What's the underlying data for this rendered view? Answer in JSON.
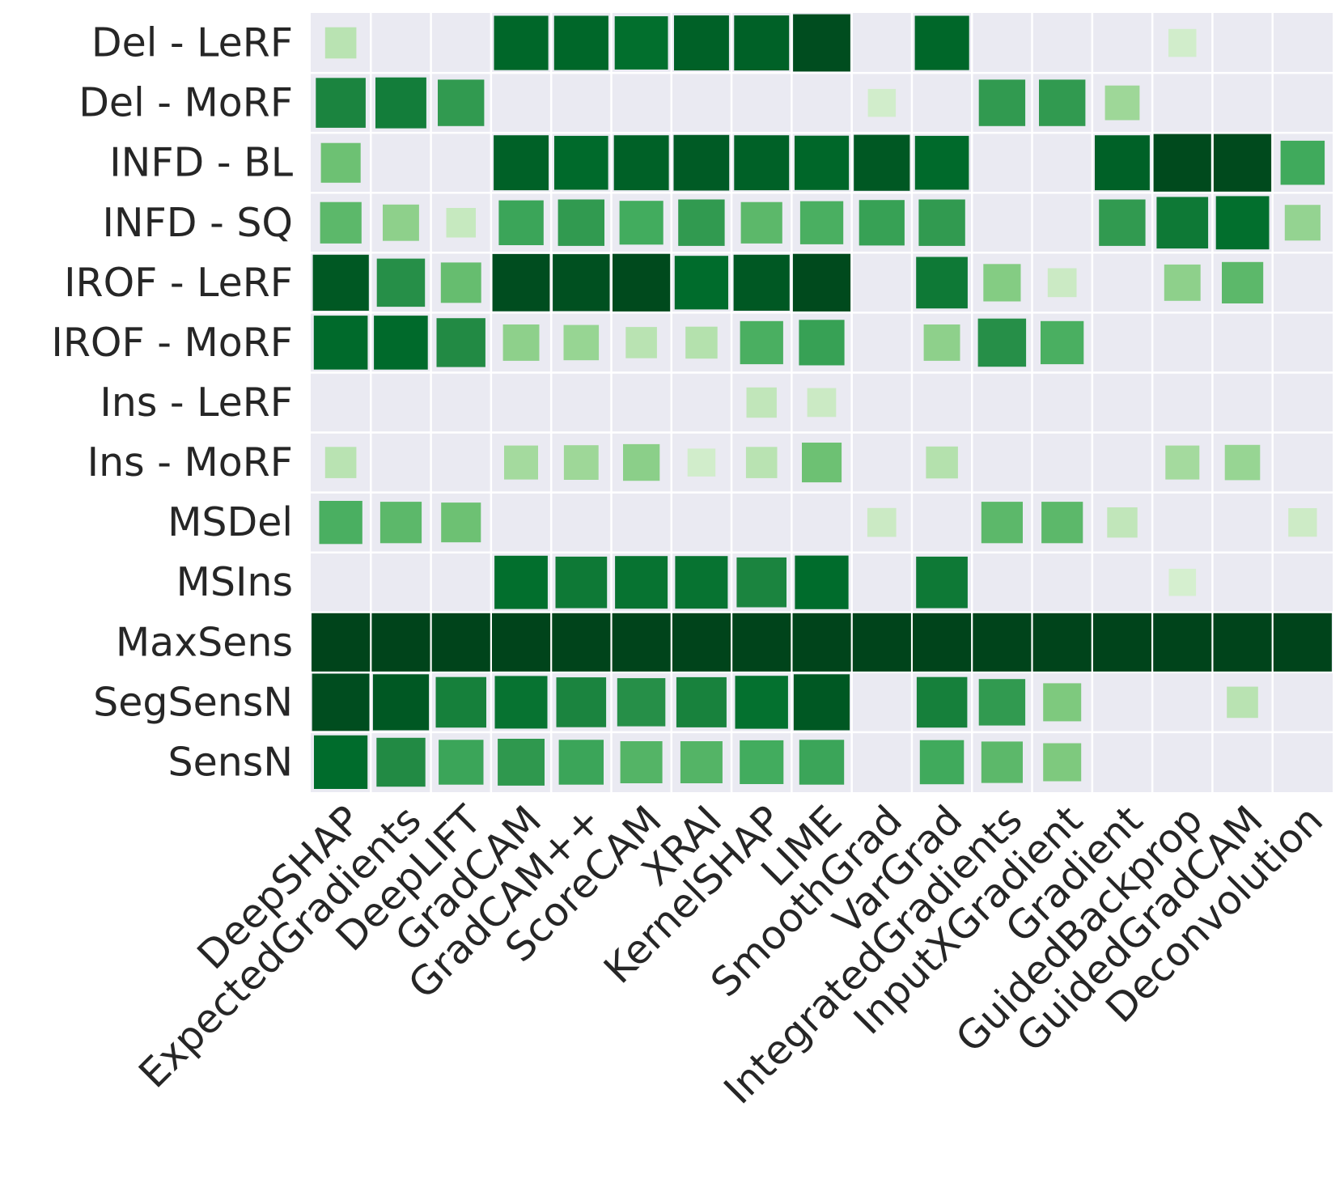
{
  "chart_data": {
    "type": "heatmap",
    "rows": [
      "Del - LeRF",
      "Del - MoRF",
      "INFD - BL",
      "INFD - SQ",
      "IROF - LeRF",
      "IROF - MoRF",
      "Ins - LeRF",
      "Ins - MoRF",
      "MSDel",
      "MSIns",
      "MaxSens",
      "SegSensN",
      "SensN"
    ],
    "columns": [
      "DeepSHAP",
      "ExpectedGradients",
      "DeepLIFT",
      "GradCAM",
      "GradCAM++",
      "ScoreCAM",
      "XRAI",
      "KernelSHAP",
      "LIME",
      "SmoothGrad",
      "VarGrad",
      "IntegratedGradients",
      "InputXGradient",
      "Gradient",
      "GuidedBackprop",
      "GuidedGradCAM",
      "Deconvolution"
    ],
    "values": [
      [
        0.2,
        0,
        0,
        0.88,
        0.88,
        0.85,
        0.9,
        0.9,
        0.97,
        0,
        0.88,
        0,
        0,
        0,
        0.1,
        0,
        0
      ],
      [
        0.75,
        0.78,
        0.65,
        0,
        0,
        0,
        0,
        0,
        0,
        0.1,
        0,
        0.65,
        0.65,
        0.3,
        0,
        0,
        0
      ],
      [
        0.45,
        0,
        0,
        0.9,
        0.87,
        0.9,
        0.92,
        0.9,
        0.88,
        0.93,
        0.87,
        0,
        0,
        0.9,
        0.98,
        0.98,
        0.58
      ],
      [
        0.5,
        0.35,
        0.15,
        0.6,
        0.65,
        0.57,
        0.65,
        0.5,
        0.55,
        0.62,
        0.65,
        0,
        0,
        0.65,
        0.8,
        0.85,
        0.33
      ],
      [
        0.93,
        0.7,
        0.47,
        0.97,
        0.96,
        0.98,
        0.86,
        0.93,
        0.98,
        0,
        0.8,
        0.38,
        0.13,
        0,
        0.35,
        0.5,
        0
      ],
      [
        0.87,
        0.87,
        0.72,
        0.35,
        0.32,
        0.2,
        0.22,
        0.55,
        0.62,
        0,
        0.35,
        0.7,
        0.55,
        0,
        0,
        0,
        0
      ],
      [
        0,
        0,
        0,
        0,
        0,
        0,
        0,
        0.17,
        0.13,
        0,
        0,
        0,
        0,
        0,
        0,
        0,
        0
      ],
      [
        0.2,
        0,
        0,
        0.28,
        0.3,
        0.36,
        0.1,
        0.2,
        0.45,
        0,
        0.22,
        0,
        0,
        0,
        0.28,
        0.32,
        0
      ],
      [
        0.55,
        0.5,
        0.45,
        0,
        0,
        0,
        0,
        0,
        0,
        0.13,
        0,
        0.5,
        0.5,
        0.17,
        0,
        0,
        0.12
      ],
      [
        0,
        0,
        0,
        0.85,
        0.8,
        0.83,
        0.83,
        0.75,
        0.86,
        0,
        0.8,
        0,
        0,
        0,
        0.08,
        0,
        0
      ],
      [
        1,
        1,
        1,
        1,
        1,
        1,
        1,
        1,
        1,
        1,
        1,
        1,
        1,
        1,
        1,
        1,
        1
      ],
      [
        0.97,
        0.93,
        0.77,
        0.83,
        0.75,
        0.7,
        0.76,
        0.84,
        0.93,
        0,
        0.77,
        0.65,
        0.4,
        0,
        0,
        0.2,
        0
      ],
      [
        0.86,
        0.72,
        0.6,
        0.66,
        0.6,
        0.52,
        0.52,
        0.57,
        0.6,
        0,
        0.58,
        0.5,
        0.4,
        0,
        0,
        0,
        0
      ]
    ],
    "grid": true
  }
}
